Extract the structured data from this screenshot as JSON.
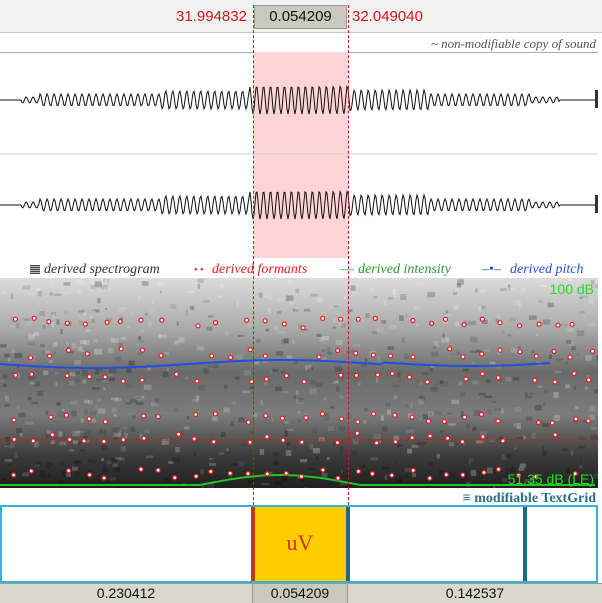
{
  "top_times": {
    "left": "31.994832",
    "selection": "0.054209",
    "right": "32.049040"
  },
  "sound_label": "~ non-modifiable copy of sound",
  "legend": {
    "spectrogram_icon": "grid-icon",
    "spectrogram": "derived spectrogram",
    "formants_marker": "• •",
    "formants": "derived formants",
    "intensity_marker": "—",
    "intensity": "derived intensity",
    "pitch_marker": "–•–",
    "pitch": "derived pitch"
  },
  "spectro": {
    "top_db": "100 dB",
    "bottom_db": "51.35 dB (LE)"
  },
  "textgrid": {
    "label": "≡ modifiable TextGrid",
    "interval_text": "uV"
  },
  "bottom": {
    "left": "0.230412",
    "mid": "0.054209",
    "right": "0.142537"
  },
  "colors": {
    "selection": "#ffd4d4",
    "formant": "#e11d1d",
    "intensity": "#22c322",
    "pitch": "#1f4fe0",
    "interval": "#ffcc00",
    "tier_border": "#2fb6d6"
  }
}
